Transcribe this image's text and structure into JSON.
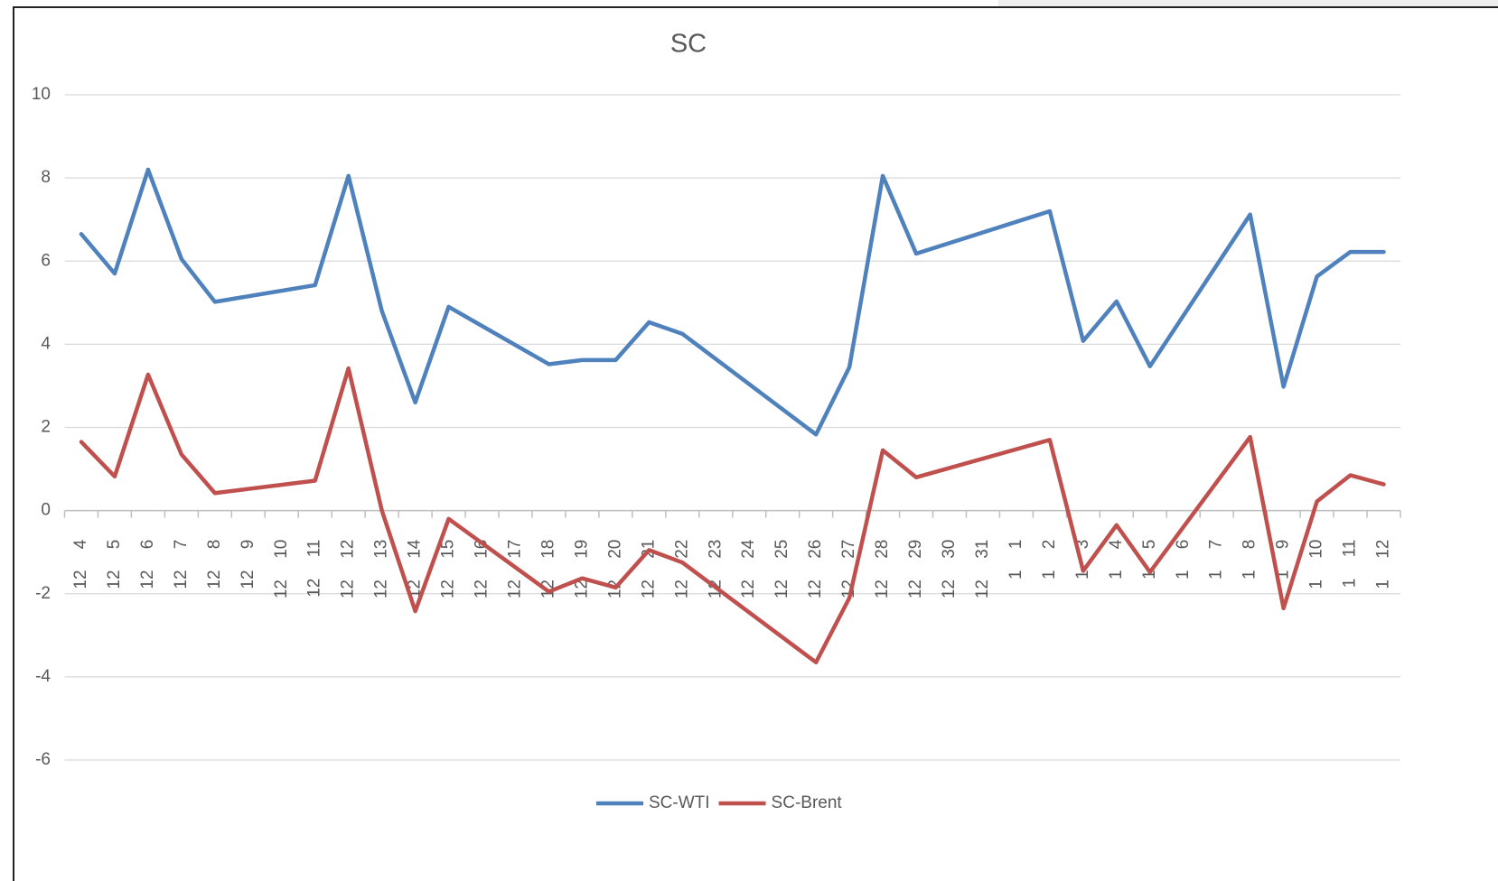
{
  "chart_data": {
    "type": "line",
    "title": "SC",
    "categories": [
      "12 4",
      "12 5",
      "12 6",
      "12 7",
      "12 8",
      "12 9",
      "12 10",
      "12 11",
      "12 12",
      "12 13",
      "12 14",
      "12 15",
      "12 16",
      "12 17",
      "12 18",
      "12 19",
      "12 20",
      "12 21",
      "12 22",
      "12 23",
      "12 24",
      "12 25",
      "12 26",
      "12 27",
      "12 28",
      "12 29",
      "12 30",
      "12 31",
      "1 1",
      "1 2",
      "1 3",
      "1 4",
      "1 5",
      "1 6",
      "1 7",
      "1 8",
      "1 9",
      "1 10",
      "1 11",
      "1 12"
    ],
    "series": [
      {
        "name": "SC-WTI",
        "color": "#4f81bd",
        "values": [
          6.65,
          5.7,
          8.2,
          6.05,
          5.02,
          null,
          null,
          5.42,
          8.05,
          4.8,
          2.6,
          4.9,
          null,
          null,
          3.52,
          3.62,
          3.62,
          4.53,
          4.25,
          null,
          null,
          null,
          1.83,
          3.45,
          8.05,
          6.18,
          null,
          null,
          null,
          7.2,
          4.08,
          5.03,
          3.47,
          null,
          null,
          7.12,
          2.98,
          5.63,
          6.22,
          6.22
        ]
      },
      {
        "name": "SC-Brent",
        "color": "#c0504d",
        "values": [
          1.65,
          0.82,
          3.27,
          1.35,
          0.42,
          null,
          null,
          0.72,
          3.42,
          0,
          -2.42,
          -0.2,
          null,
          null,
          -1.95,
          -1.63,
          -1.85,
          -0.95,
          -1.25,
          null,
          null,
          null,
          -3.65,
          -2.1,
          1.45,
          0.8,
          null,
          null,
          null,
          1.7,
          -1.45,
          -0.35,
          -1.48,
          null,
          null,
          1.77,
          -2.35,
          0.22,
          0.85,
          0.63
        ]
      }
    ],
    "ylim": [
      -6,
      10
    ],
    "yticks": [
      -6,
      -4,
      -2,
      0,
      2,
      4,
      6,
      8,
      10
    ],
    "grid": true,
    "gaps": "connect",
    "legend": "bottom"
  }
}
